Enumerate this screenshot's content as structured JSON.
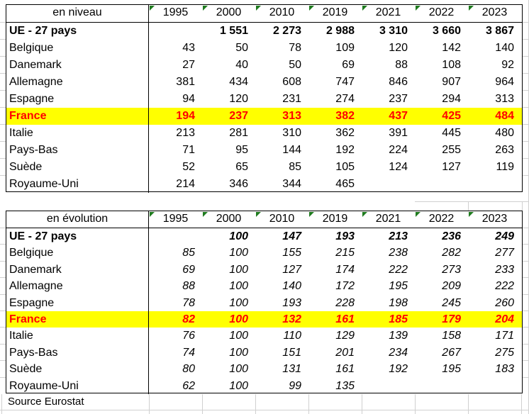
{
  "colors": {
    "highlight_bg": "#FFFF00",
    "highlight_text": "#FF0000",
    "marker_green": "#1E7B1E",
    "gridline": "#D0D0D0",
    "table_border": "#000000"
  },
  "columns": [
    "1995",
    "2000",
    "2010",
    "2019",
    "2021",
    "2022",
    "2023"
  ],
  "table_niveau": {
    "title": "en niveau",
    "rows": [
      {
        "label": "UE - 27 pays",
        "style": "bold",
        "values": [
          "",
          "1 551",
          "2 273",
          "2 988",
          "3 310",
          "3 660",
          "3 867"
        ]
      },
      {
        "label": "Belgique",
        "values": [
          "43",
          "50",
          "78",
          "109",
          "120",
          "142",
          "140"
        ]
      },
      {
        "label": "Danemark",
        "values": [
          "27",
          "40",
          "50",
          "69",
          "88",
          "108",
          "92"
        ]
      },
      {
        "label": "Allemagne",
        "values": [
          "381",
          "434",
          "608",
          "747",
          "846",
          "907",
          "964"
        ]
      },
      {
        "label": "Espagne",
        "values": [
          "94",
          "120",
          "231",
          "274",
          "237",
          "294",
          "313"
        ]
      },
      {
        "label": "France",
        "style": "highlight",
        "values": [
          "194",
          "237",
          "313",
          "382",
          "437",
          "425",
          "484"
        ]
      },
      {
        "label": "Italie",
        "values": [
          "213",
          "281",
          "310",
          "362",
          "391",
          "445",
          "480"
        ]
      },
      {
        "label": "Pays-Bas",
        "values": [
          "71",
          "95",
          "144",
          "192",
          "224",
          "255",
          "263"
        ]
      },
      {
        "label": "Suède",
        "values": [
          "52",
          "65",
          "85",
          "105",
          "124",
          "127",
          "119"
        ]
      },
      {
        "label": "Royaume-Uni",
        "values": [
          "214",
          "346",
          "344",
          "465",
          "",
          "",
          ""
        ]
      }
    ]
  },
  "table_evolution": {
    "title": "en évolution",
    "rows": [
      {
        "label": "UE - 27 pays",
        "style": "bold",
        "values": [
          "",
          "100",
          "147",
          "193",
          "213",
          "236",
          "249"
        ]
      },
      {
        "label": "Belgique",
        "values": [
          "85",
          "100",
          "155",
          "215",
          "238",
          "282",
          "277"
        ]
      },
      {
        "label": "Danemark",
        "values": [
          "69",
          "100",
          "127",
          "174",
          "222",
          "273",
          "233"
        ]
      },
      {
        "label": "Allemagne",
        "values": [
          "88",
          "100",
          "140",
          "172",
          "195",
          "209",
          "222"
        ]
      },
      {
        "label": "Espagne",
        "values": [
          "78",
          "100",
          "193",
          "228",
          "198",
          "245",
          "260"
        ]
      },
      {
        "label": "France",
        "style": "highlight",
        "values": [
          "82",
          "100",
          "132",
          "161",
          "185",
          "179",
          "204"
        ]
      },
      {
        "label": "Italie",
        "values": [
          "76",
          "100",
          "110",
          "129",
          "139",
          "158",
          "171"
        ]
      },
      {
        "label": "Pays-Bas",
        "values": [
          "74",
          "100",
          "151",
          "201",
          "234",
          "267",
          "275"
        ]
      },
      {
        "label": "Suède",
        "values": [
          "80",
          "100",
          "131",
          "161",
          "192",
          "195",
          "183"
        ]
      },
      {
        "label": "Royaume-Uni",
        "values": [
          "62",
          "100",
          "99",
          "135",
          "",
          "",
          ""
        ]
      }
    ]
  },
  "footer": {
    "source": "Source Eurostat"
  }
}
